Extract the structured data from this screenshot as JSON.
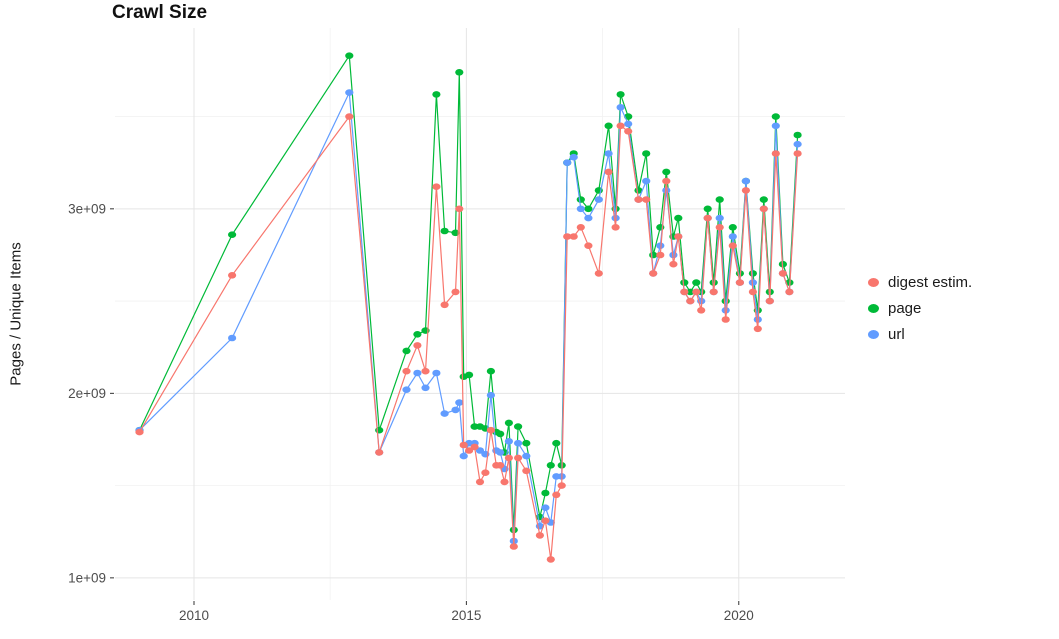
{
  "chart_data": {
    "type": "line",
    "title": "Crawl Size",
    "xlabel": "",
    "ylabel": "Pages / Unique Items",
    "y_unit": "1e9 (billions)",
    "grid": true,
    "legend_position": "right",
    "xlim": [
      2008.55,
      2021.95
    ],
    "ylim": [
      0.88,
      3.98
    ],
    "x_ticks": [
      {
        "value": 2010,
        "label": "2010"
      },
      {
        "value": 2015,
        "label": "2015"
      },
      {
        "value": 2020,
        "label": "2020"
      }
    ],
    "y_ticks": [
      {
        "value": 1,
        "label": "1e+09"
      },
      {
        "value": 2,
        "label": "2e+09"
      },
      {
        "value": 3,
        "label": "3e+09"
      }
    ],
    "x_minor": [
      2012.5,
      2017.5
    ],
    "y_minor": [
      1.5,
      2.5,
      3.5
    ],
    "x": [
      2009,
      2010.7,
      2012.85,
      2013.4,
      2013.9,
      2014.1,
      2014.25,
      2014.45,
      2014.6,
      2014.8,
      2014.87,
      2014.95,
      2015.05,
      2015.15,
      2015.25,
      2015.35,
      2015.45,
      2015.55,
      2015.62,
      2015.7,
      2015.78,
      2015.87,
      2015.95,
      2016.1,
      2016.35,
      2016.45,
      2016.55,
      2016.65,
      2016.75,
      2016.85,
      2016.97,
      2017.1,
      2017.24,
      2017.43,
      2017.61,
      2017.74,
      2017.83,
      2017.97,
      2018.16,
      2018.3,
      2018.43,
      2018.56,
      2018.67,
      2018.8,
      2018.89,
      2019,
      2019.11,
      2019.22,
      2019.31,
      2019.43,
      2019.54,
      2019.65,
      2019.76,
      2019.89,
      2020.02,
      2020.13,
      2020.26,
      2020.35,
      2020.46,
      2020.57,
      2020.68,
      2020.81,
      2020.93,
      2021.08
    ],
    "series": [
      {
        "name": "digest estim.",
        "color": "#F8766D",
        "values": [
          1.79,
          2.64,
          3.5,
          1.68,
          2.12,
          2.26,
          2.12,
          3.12,
          2.48,
          2.55,
          3.0,
          1.72,
          1.69,
          1.71,
          1.52,
          1.57,
          1.8,
          1.61,
          1.61,
          1.52,
          1.65,
          1.17,
          1.65,
          1.58,
          1.23,
          1.31,
          1.1,
          1.45,
          1.5,
          2.85,
          2.85,
          2.9,
          2.8,
          2.65,
          3.2,
          2.9,
          3.45,
          3.42,
          3.05,
          3.05,
          2.65,
          2.75,
          3.15,
          2.7,
          2.85,
          2.55,
          2.5,
          2.55,
          2.45,
          2.95,
          2.55,
          2.9,
          2.4,
          2.8,
          2.6,
          3.1,
          2.55,
          2.35,
          3.0,
          2.5,
          3.3,
          2.65,
          2.55,
          3.3
        ]
      },
      {
        "name": "page",
        "color": "#00BA38",
        "values": [
          1.8,
          2.86,
          3.83,
          1.8,
          2.23,
          2.32,
          2.34,
          3.62,
          2.88,
          2.87,
          3.74,
          2.09,
          2.1,
          1.82,
          1.82,
          1.81,
          2.12,
          1.79,
          1.78,
          1.68,
          1.84,
          1.26,
          1.82,
          1.73,
          1.33,
          1.46,
          1.61,
          1.73,
          1.61,
          3.25,
          3.3,
          3.05,
          3.0,
          3.1,
          3.45,
          3.0,
          3.62,
          3.5,
          3.1,
          3.3,
          2.75,
          2.9,
          3.2,
          2.85,
          2.95,
          2.6,
          2.55,
          2.6,
          2.55,
          3.0,
          2.6,
          3.05,
          2.5,
          2.9,
          2.65,
          3.15,
          2.65,
          2.45,
          3.05,
          2.55,
          3.5,
          2.7,
          2.6,
          3.4
        ]
      },
      {
        "name": "url",
        "color": "#619CFF",
        "values": [
          1.8,
          2.3,
          3.63,
          1.68,
          2.02,
          2.11,
          2.03,
          2.11,
          1.89,
          1.91,
          1.95,
          1.66,
          1.73,
          1.73,
          1.69,
          1.67,
          1.99,
          1.69,
          1.68,
          1.59,
          1.74,
          1.2,
          1.73,
          1.66,
          1.28,
          1.38,
          1.3,
          1.55,
          1.55,
          3.25,
          3.28,
          3.0,
          2.95,
          3.05,
          3.3,
          2.95,
          3.55,
          3.46,
          3.05,
          3.15,
          2.65,
          2.8,
          3.1,
          2.75,
          2.85,
          2.55,
          2.5,
          2.55,
          2.5,
          2.95,
          2.55,
          2.95,
          2.45,
          2.85,
          2.6,
          3.15,
          2.6,
          2.4,
          3.0,
          2.5,
          3.45,
          2.65,
          2.55,
          3.35
        ]
      }
    ]
  },
  "style": {
    "grid_major_color": "#E5E5E5",
    "grid_minor_color": "#F2F2F2",
    "axis_text_color": "#4d4d4d",
    "tick_mark_color": "#333333",
    "background": "#ffffff"
  }
}
